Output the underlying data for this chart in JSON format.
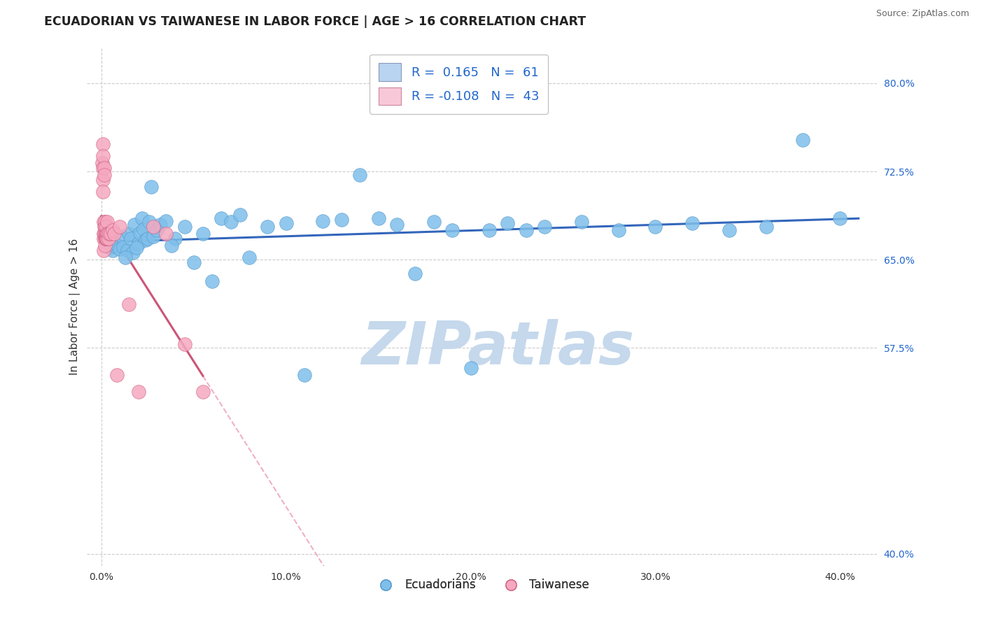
{
  "title": "ECUADORIAN VS TAIWANESE IN LABOR FORCE | AGE > 16 CORRELATION CHART",
  "source": "Source: ZipAtlas.com",
  "ylabel": "In Labor Force | Age > 16",
  "x_ticks": [
    0.0,
    10.0,
    20.0,
    30.0,
    40.0
  ],
  "x_tick_labels": [
    "0.0%",
    "10.0%",
    "20.0%",
    "30.0%",
    "40.0%"
  ],
  "y_ticks_right": [
    40.0,
    57.5,
    65.0,
    72.5,
    80.0
  ],
  "xlim": [
    -0.8,
    42.0
  ],
  "ylim": [
    39.0,
    83.0
  ],
  "blue_color": "#7fbfea",
  "blue_edge_color": "#5599cc",
  "pink_color": "#f5a8c0",
  "pink_edge_color": "#d06080",
  "blue_line_color": "#3366bb",
  "pink_line_solid_color": "#cc5577",
  "pink_line_dash_color": "#f0b0c8",
  "watermark": "ZIPatlas",
  "watermark_color": "#c5d8ec",
  "grid_color": "#cccccc",
  "background_color": "#ffffff",
  "ecuadorian_x": [
    0.3,
    0.5,
    0.6,
    0.7,
    0.8,
    1.0,
    1.1,
    1.2,
    1.4,
    1.5,
    1.6,
    1.7,
    1.8,
    2.0,
    2.1,
    2.2,
    2.3,
    2.4,
    2.5,
    2.6,
    2.8,
    3.0,
    3.2,
    3.5,
    4.0,
    4.5,
    5.0,
    5.5,
    6.0,
    6.5,
    7.0,
    8.0,
    9.0,
    10.0,
    11.0,
    12.0,
    13.0,
    14.0,
    15.0,
    16.0,
    17.0,
    18.0,
    19.0,
    20.0,
    21.0,
    22.0,
    24.0,
    26.0,
    28.0,
    30.0,
    32.0,
    34.0,
    36.0,
    38.0,
    40.0,
    1.3,
    1.9,
    2.7,
    3.8,
    7.5,
    23.0
  ],
  "ecuadorian_y": [
    66.5,
    66.0,
    65.8,
    66.2,
    66.3,
    65.9,
    67.0,
    66.1,
    65.8,
    67.2,
    66.8,
    65.6,
    68.0,
    66.4,
    67.3,
    68.5,
    67.6,
    66.7,
    66.8,
    68.2,
    67.0,
    67.5,
    68.0,
    68.3,
    66.8,
    67.8,
    64.8,
    67.2,
    63.2,
    68.5,
    68.2,
    65.2,
    67.8,
    68.1,
    55.2,
    68.3,
    68.4,
    72.2,
    68.5,
    68.0,
    63.8,
    68.2,
    67.5,
    55.8,
    67.5,
    68.1,
    67.8,
    68.2,
    67.5,
    67.8,
    68.1,
    67.5,
    67.8,
    75.2,
    68.5,
    65.2,
    66.0,
    71.2,
    66.2,
    68.8,
    67.5
  ],
  "taiwanese_x": [
    0.05,
    0.07,
    0.08,
    0.09,
    0.1,
    0.1,
    0.11,
    0.12,
    0.13,
    0.14,
    0.15,
    0.15,
    0.16,
    0.17,
    0.18,
    0.19,
    0.2,
    0.21,
    0.22,
    0.23,
    0.24,
    0.25,
    0.26,
    0.27,
    0.28,
    0.29,
    0.3,
    0.31,
    0.32,
    0.35,
    0.38,
    0.42,
    0.5,
    0.6,
    0.7,
    0.85,
    1.0,
    1.5,
    2.0,
    2.8,
    3.5,
    4.5,
    5.5
  ],
  "taiwanese_y": [
    73.2,
    72.8,
    71.8,
    70.8,
    74.8,
    73.8,
    68.2,
    67.2,
    66.8,
    65.8,
    72.8,
    72.2,
    67.8,
    67.2,
    66.8,
    66.2,
    68.2,
    67.8,
    66.8,
    67.2,
    66.8,
    67.2,
    66.8,
    67.2,
    67.8,
    66.8,
    68.2,
    67.2,
    66.8,
    67.2,
    66.8,
    67.2,
    67.2,
    67.5,
    67.2,
    55.2,
    67.8,
    61.2,
    53.8,
    67.8,
    67.2,
    57.8,
    53.8
  ],
  "legend_labels_bottom": [
    "Ecuadorians",
    "Taiwanese"
  ]
}
